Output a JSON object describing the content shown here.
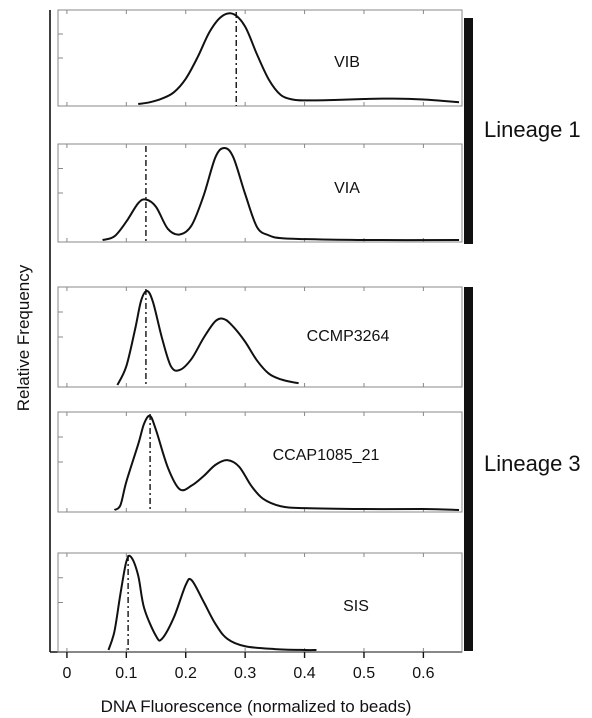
{
  "chart_data": {
    "type": "line",
    "xlabel": "DNA Fluorescence (normalized to beads)",
    "ylabel": "Relative Frequency",
    "xlim": [
      -0.015,
      0.665
    ],
    "x_ticks": [
      0,
      0.1,
      0.2,
      0.3,
      0.4,
      0.5,
      0.6
    ],
    "x_tick_labels": [
      "0",
      "0.1",
      "0.2",
      "0.3",
      "0.4",
      "0.5",
      "0.6"
    ],
    "grid": false,
    "lineages": [
      {
        "label": "Lineage 1",
        "panels": [
          "VIB",
          "VIA"
        ]
      },
      {
        "label": "Lineage 3",
        "panels": [
          "CCMP3264",
          "CCAP1085_21",
          "SIS"
        ]
      }
    ],
    "panels": [
      {
        "label": "VIB",
        "peak_marker_x": 0.285,
        "x": [
          0.12,
          0.14,
          0.16,
          0.18,
          0.2,
          0.22,
          0.24,
          0.26,
          0.28,
          0.3,
          0.32,
          0.34,
          0.36,
          0.38,
          0.4,
          0.45,
          0.5,
          0.55,
          0.6,
          0.66
        ],
        "values": [
          0.0,
          0.02,
          0.06,
          0.13,
          0.28,
          0.52,
          0.8,
          0.97,
          1.0,
          0.86,
          0.55,
          0.27,
          0.1,
          0.05,
          0.04,
          0.045,
          0.055,
          0.06,
          0.05,
          0.02
        ]
      },
      {
        "label": "VIA",
        "peak_marker_x": 0.133,
        "x": [
          0.06,
          0.08,
          0.1,
          0.12,
          0.133,
          0.15,
          0.17,
          0.19,
          0.21,
          0.23,
          0.25,
          0.265,
          0.28,
          0.3,
          0.32,
          0.34,
          0.36,
          0.4,
          0.5,
          0.66
        ],
        "values": [
          0.0,
          0.04,
          0.2,
          0.4,
          0.44,
          0.36,
          0.12,
          0.06,
          0.16,
          0.48,
          0.9,
          1.0,
          0.9,
          0.5,
          0.14,
          0.05,
          0.02,
          0.01,
          0.0,
          0.0
        ]
      },
      {
        "label": "CCMP3264",
        "peak_marker_x": 0.133,
        "x": [
          0.085,
          0.1,
          0.115,
          0.125,
          0.135,
          0.145,
          0.16,
          0.175,
          0.19,
          0.21,
          0.23,
          0.25,
          0.265,
          0.28,
          0.3,
          0.32,
          0.34,
          0.36,
          0.38,
          0.39
        ],
        "values": [
          0.0,
          0.2,
          0.6,
          0.9,
          1.0,
          0.88,
          0.5,
          0.2,
          0.16,
          0.28,
          0.5,
          0.68,
          0.7,
          0.62,
          0.46,
          0.26,
          0.12,
          0.06,
          0.03,
          0.02
        ]
      },
      {
        "label": "CCAP1085_21",
        "peak_marker_x": 0.14,
        "x": [
          0.08,
          0.09,
          0.1,
          0.12,
          0.13,
          0.14,
          0.15,
          0.17,
          0.19,
          0.21,
          0.23,
          0.25,
          0.27,
          0.29,
          0.31,
          0.33,
          0.36,
          0.4,
          0.5,
          0.6,
          0.66
        ],
        "values": [
          0.0,
          0.05,
          0.3,
          0.7,
          0.92,
          1.0,
          0.85,
          0.45,
          0.22,
          0.26,
          0.36,
          0.48,
          0.53,
          0.46,
          0.26,
          0.12,
          0.04,
          0.02,
          0.01,
          0.01,
          0.0
        ]
      },
      {
        "label": "SIS",
        "peak_marker_x": 0.103,
        "x": [
          0.07,
          0.08,
          0.09,
          0.1,
          0.108,
          0.12,
          0.13,
          0.15,
          0.16,
          0.18,
          0.2,
          0.21,
          0.23,
          0.25,
          0.27,
          0.3,
          0.35,
          0.4,
          0.42
        ],
        "values": [
          0.0,
          0.2,
          0.6,
          0.95,
          1.0,
          0.8,
          0.45,
          0.15,
          0.12,
          0.35,
          0.7,
          0.75,
          0.52,
          0.28,
          0.12,
          0.04,
          0.01,
          0.0,
          0.0
        ]
      }
    ]
  }
}
